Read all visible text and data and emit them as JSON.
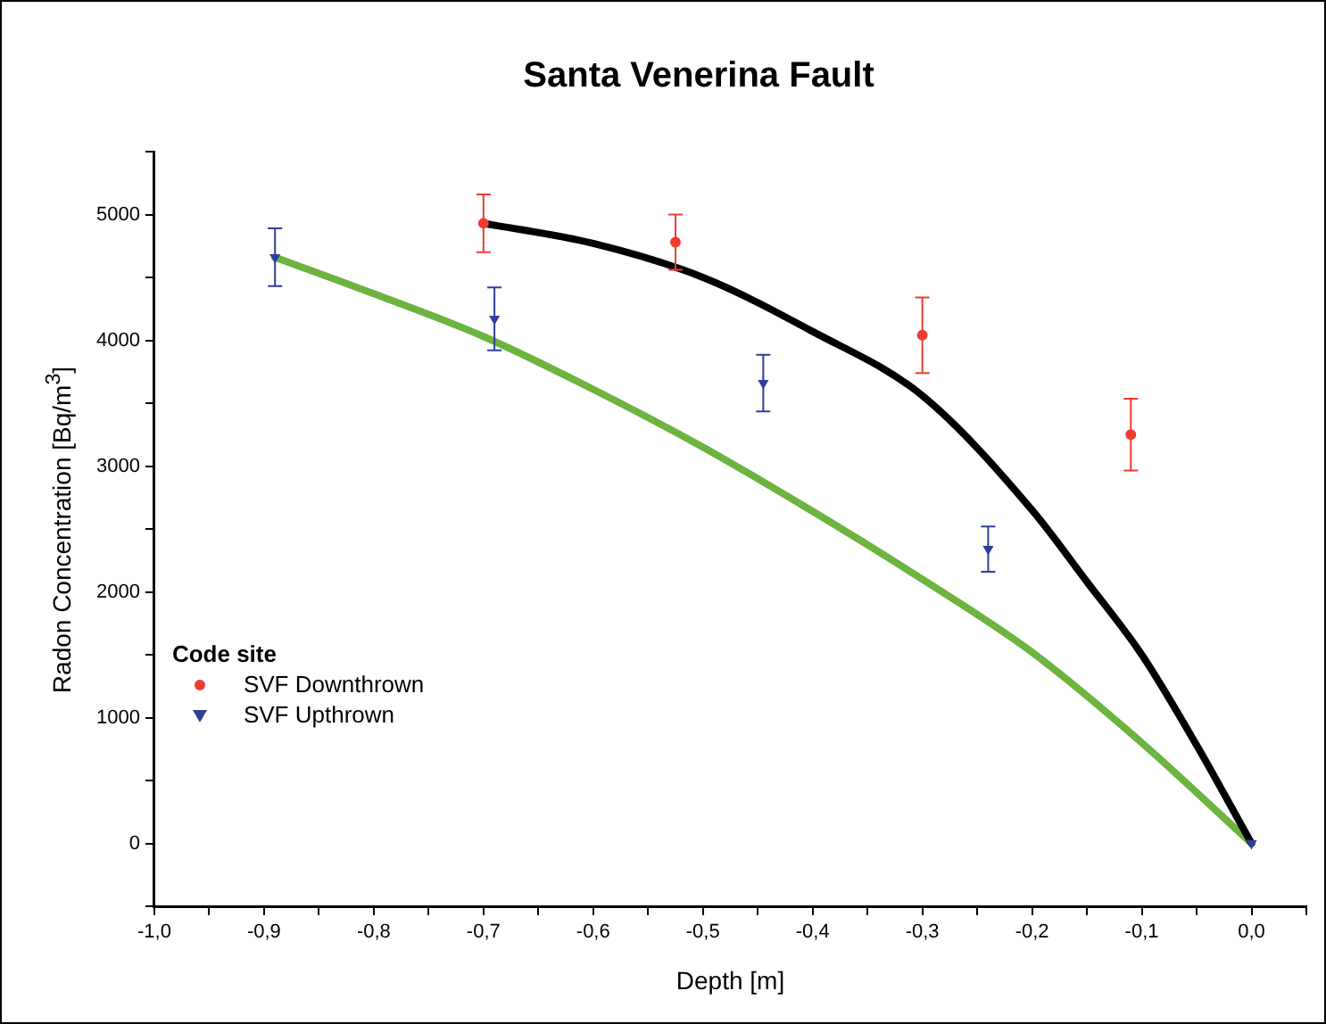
{
  "chart_data": {
    "type": "scatter",
    "title": "Santa Venerina Fault",
    "xlabel": "Depth [m]",
    "ylabel": "Radon Concentration [Bq/m$^{3}$]",
    "legend_title": "Code site",
    "legend": "bottom left",
    "grid": false,
    "xlim": [
      -1.0,
      0.05
    ],
    "xticks": [
      {
        "value": -1.0,
        "label": "-1,0"
      },
      {
        "value": -0.95,
        "label": null
      },
      {
        "value": -0.9,
        "label": "-0,9"
      },
      {
        "value": -0.85,
        "label": null
      },
      {
        "value": -0.8,
        "label": "-0,8"
      },
      {
        "value": -0.75,
        "label": null
      },
      {
        "value": -0.7,
        "label": "-0,7"
      },
      {
        "value": -0.65,
        "label": null
      },
      {
        "value": -0.6,
        "label": "-0,6"
      },
      {
        "value": -0.55,
        "label": null
      },
      {
        "value": -0.5,
        "label": "-0,5"
      },
      {
        "value": -0.45,
        "label": null
      },
      {
        "value": -0.4,
        "label": "-0,4"
      },
      {
        "value": -0.35,
        "label": null
      },
      {
        "value": -0.3,
        "label": "-0,3"
      },
      {
        "value": -0.25,
        "label": null
      },
      {
        "value": -0.2,
        "label": "-0,2"
      },
      {
        "value": -0.15,
        "label": null
      },
      {
        "value": -0.1,
        "label": "-0,1"
      },
      {
        "value": -0.05,
        "label": null
      },
      {
        "value": 0.0,
        "label": "0,0"
      },
      {
        "value": 0.05,
        "label": null
      }
    ],
    "ylim": [
      -500,
      5500
    ],
    "yticks": [
      {
        "value": -500,
        "label": null
      },
      0,
      {
        "value": 500,
        "label": null
      },
      1000,
      {
        "value": 1500,
        "label": null
      },
      2000,
      {
        "value": 2500,
        "label": null
      },
      3000,
      {
        "value": 3500,
        "label": null
      },
      4000,
      {
        "value": 4500,
        "label": null
      },
      5000,
      {
        "value": 5500,
        "label": null
      }
    ],
    "series": [
      {
        "name": "SVF Downthrown",
        "type": "scatter",
        "marker": "circle",
        "color": "#f03c32",
        "x": [
          -0.7,
          -0.525,
          -0.3,
          -0.11
        ],
        "values": [
          4930,
          4780,
          4040,
          3250
        ],
        "errors": [
          230,
          220,
          300,
          285
        ]
      },
      {
        "name": "SVF Upthrown",
        "type": "scatter",
        "marker": "triangle",
        "color": "#2e3f99",
        "x": [
          -0.89,
          -0.69,
          -0.445,
          -0.24,
          0.0
        ],
        "values": [
          4660,
          4170,
          3660,
          2340,
          0
        ],
        "errors": [
          230,
          250,
          225,
          180,
          null
        ]
      },
      {
        "type": "line",
        "marker": "none",
        "line_style": "solid",
        "color": "#000000",
        "x": [
          -0.7,
          -0.6,
          -0.5,
          -0.4,
          -0.3,
          -0.2,
          -0.15,
          -0.1,
          -0.05,
          0.0
        ],
        "values": [
          4930,
          4770,
          4500,
          4070,
          3560,
          2650,
          2080,
          1500,
          780,
          0
        ]
      },
      {
        "type": "line",
        "marker": "none",
        "line_style": "solid",
        "color": "#6db33f",
        "x": [
          -0.89,
          -0.8,
          -0.7,
          -0.6,
          -0.5,
          -0.4,
          -0.3,
          -0.2,
          -0.1,
          0.0
        ],
        "values": [
          4660,
          4370,
          4030,
          3610,
          3150,
          2640,
          2100,
          1520,
          800,
          0
        ]
      }
    ]
  }
}
